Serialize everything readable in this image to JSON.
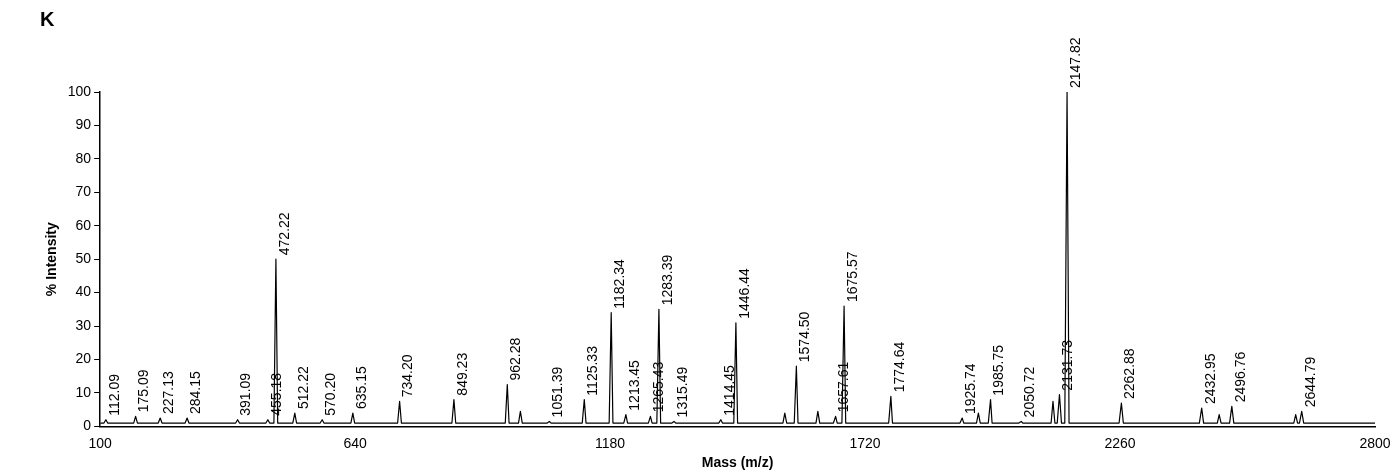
{
  "chart_data": {
    "type": "line",
    "title": "K",
    "xlabel": "Mass (m/z)",
    "ylabel": "% Intensity",
    "x": [
      100,
      108,
      112.09,
      116,
      171,
      175.09,
      179,
      223,
      227.13,
      231,
      280,
      284.15,
      288,
      387,
      391.09,
      395,
      451,
      455.18,
      459,
      468,
      472.22,
      476,
      508,
      512.22,
      516,
      566,
      570.2,
      574,
      631,
      635.15,
      639,
      730,
      734.2,
      738,
      845,
      849.23,
      853,
      958,
      962.28,
      966,
      986,
      990,
      994,
      1047,
      1051.39,
      1055,
      1121,
      1125.33,
      1129,
      1178,
      1182.34,
      1186,
      1209,
      1213.45,
      1217,
      1261,
      1265.43,
      1269,
      1279,
      1283.39,
      1287,
      1311,
      1315.49,
      1319,
      1410,
      1414.45,
      1418,
      1442,
      1446.44,
      1450,
      1546,
      1550,
      1554,
      1570,
      1574.5,
      1578,
      1616,
      1620,
      1624,
      1653,
      1657.61,
      1661,
      1671,
      1675.57,
      1679,
      1770,
      1774.64,
      1778,
      1921,
      1925.74,
      1929,
      1956,
      1960,
      1964,
      1981,
      1985.75,
      1989,
      2046,
      2050.72,
      2054,
      2114,
      2118,
      2122,
      2127,
      2131.73,
      2136,
      2143,
      2147.82,
      2152,
      2258,
      2262.88,
      2267,
      2428,
      2432.95,
      2437,
      2466,
      2470,
      2474,
      2492,
      2496.76,
      2501,
      2628,
      2632,
      2636,
      2640,
      2644.79,
      2649,
      2800
    ],
    "values": [
      1,
      1,
      2,
      1,
      1,
      3,
      1,
      1,
      2.5,
      1,
      1,
      2.5,
      1,
      1,
      2,
      1,
      1,
      2,
      1,
      1,
      50,
      1,
      1,
      4,
      1,
      1,
      2,
      1,
      1,
      4,
      1,
      1,
      7.5,
      1,
      1,
      8,
      1,
      1,
      12.5,
      1,
      1,
      4.5,
      1,
      1,
      1.5,
      1,
      1,
      8,
      1,
      1,
      34,
      1,
      1,
      3.5,
      1,
      1,
      3,
      1,
      1,
      35,
      1,
      1,
      1.5,
      1,
      1,
      2,
      1,
      1,
      31,
      1,
      1,
      4,
      1,
      1,
      18,
      1,
      1,
      4.5,
      1,
      1,
      3,
      1,
      1,
      36,
      1,
      1,
      9,
      1,
      1,
      2.5,
      1,
      1,
      4,
      1,
      1,
      8,
      1,
      1,
      1.5,
      1,
      1,
      7.5,
      1,
      1,
      9.5,
      1,
      1,
      100,
      1,
      1,
      7,
      1,
      1,
      5.5,
      1,
      1,
      3.5,
      1,
      1,
      6,
      1,
      1,
      3.5,
      1,
      1,
      4.5,
      1,
      1
    ],
    "annotations": [
      {
        "text": "112.09",
        "x": 112.09,
        "y": 2
      },
      {
        "text": "175.09",
        "x": 175.09,
        "y": 3
      },
      {
        "text": "227.13",
        "x": 227.13,
        "y": 2.5
      },
      {
        "text": "284.15",
        "x": 284.15,
        "y": 2.5
      },
      {
        "text": "391.09",
        "x": 391.09,
        "y": 2
      },
      {
        "text": "455.18",
        "x": 455.18,
        "y": 2
      },
      {
        "text": "472.22",
        "x": 472.22,
        "y": 50
      },
      {
        "text": "512.22",
        "x": 512.22,
        "y": 4
      },
      {
        "text": "570.20",
        "x": 570.2,
        "y": 2
      },
      {
        "text": "635.15",
        "x": 635.15,
        "y": 4
      },
      {
        "text": "734.20",
        "x": 734.2,
        "y": 7.5
      },
      {
        "text": "849.23",
        "x": 849.23,
        "y": 8
      },
      {
        "text": "962.28",
        "x": 962.28,
        "y": 12.5
      },
      {
        "text": "1051.39",
        "x": 1051.39,
        "y": 1.5
      },
      {
        "text": "1125.33",
        "x": 1125.33,
        "y": 8
      },
      {
        "text": "1182.34",
        "x": 1182.34,
        "y": 34
      },
      {
        "text": "1213.45",
        "x": 1213.45,
        "y": 3.5
      },
      {
        "text": "1265.43",
        "x": 1265.43,
        "y": 3
      },
      {
        "text": "1283.39",
        "x": 1283.39,
        "y": 35
      },
      {
        "text": "1315.49",
        "x": 1315.49,
        "y": 1.5
      },
      {
        "text": "1414.45",
        "x": 1414.45,
        "y": 2
      },
      {
        "text": "1446.44",
        "x": 1446.44,
        "y": 31
      },
      {
        "text": "1574.50",
        "x": 1574.5,
        "y": 18
      },
      {
        "text": "1657.61",
        "x": 1657.61,
        "y": 3
      },
      {
        "text": "1675.57",
        "x": 1675.57,
        "y": 36
      },
      {
        "text": "1774.64",
        "x": 1774.64,
        "y": 9
      },
      {
        "text": "1925.74",
        "x": 1925.74,
        "y": 2.5
      },
      {
        "text": "1985.75",
        "x": 1985.75,
        "y": 8
      },
      {
        "text": "2050.72",
        "x": 2050.72,
        "y": 1.5
      },
      {
        "text": "2131.73",
        "x": 2131.73,
        "y": 9.5
      },
      {
        "text": "2147.82",
        "x": 2147.82,
        "y": 100
      },
      {
        "text": "2262.88",
        "x": 2262.88,
        "y": 7
      },
      {
        "text": "2432.95",
        "x": 2432.95,
        "y": 5.5
      },
      {
        "text": "2496.76",
        "x": 2496.76,
        "y": 6
      },
      {
        "text": "2644.79",
        "x": 2644.79,
        "y": 4.5
      }
    ],
    "color": "#000000",
    "xlim": [
      100,
      2800
    ],
    "xticks": [
      100,
      640,
      1180,
      1720,
      2260,
      2800
    ],
    "ylim": [
      0,
      100
    ],
    "yticks": [
      0,
      10,
      20,
      30,
      40,
      50,
      60,
      70,
      80,
      90,
      100
    ],
    "grid": false,
    "legend": false,
    "marker": "none",
    "line_style": "solid"
  }
}
